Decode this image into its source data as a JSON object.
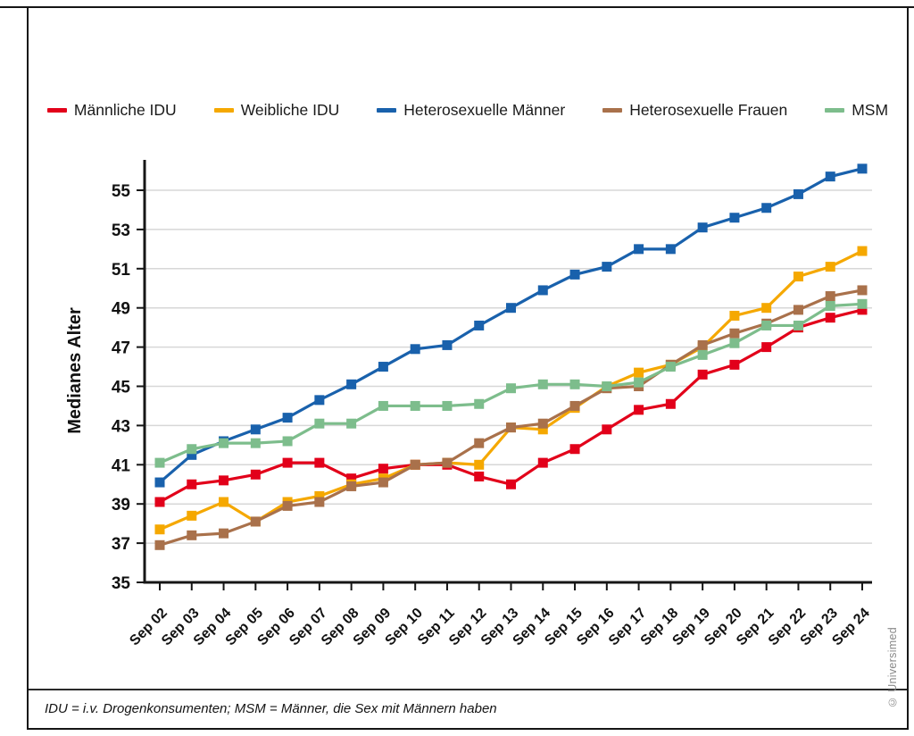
{
  "figure": {
    "footnote": "IDU = i.v. Drogenkonsumenten; MSM = Männer, die Sex mit Männern haben",
    "copyright": "© Universimed"
  },
  "chart_data": {
    "type": "line",
    "title": "",
    "ylabel": "Medianes Alter",
    "ylim": [
      35,
      57
    ],
    "yticks": [
      35,
      37,
      39,
      41,
      43,
      45,
      47,
      49,
      51,
      53,
      55
    ],
    "grid": true,
    "legend_position": "top",
    "marker": "square",
    "categories": [
      "Sep 02",
      "Sep 03",
      "Sep 04",
      "Sep 05",
      "Sep 06",
      "Sep 07",
      "Sep 08",
      "Sep 09",
      "Sep 10",
      "Sep 11",
      "Sep 12",
      "Sep 13",
      "Sep 14",
      "Sep 15",
      "Sep 16",
      "Sep 17",
      "Sep 18",
      "Sep 19",
      "Sep 20",
      "Sep 21",
      "Sep 22",
      "Sep 23",
      "Sep 24"
    ],
    "series": [
      {
        "name": "Männliche IDU",
        "color": "#e2001a",
        "values": [
          39.1,
          40.0,
          40.2,
          40.5,
          41.1,
          41.1,
          40.3,
          40.8,
          41.0,
          41.0,
          40.4,
          40.0,
          41.1,
          41.8,
          42.8,
          43.8,
          44.1,
          45.6,
          46.1,
          47.0,
          48.0,
          48.5,
          48.9
        ]
      },
      {
        "name": "Weibliche IDU",
        "color": "#f5a800",
        "values": [
          37.7,
          38.4,
          39.1,
          38.1,
          39.1,
          39.4,
          40.0,
          40.3,
          41.0,
          41.1,
          41.0,
          42.9,
          42.8,
          43.9,
          45.0,
          45.7,
          46.1,
          47.0,
          48.6,
          49.0,
          50.6,
          51.1,
          51.9
        ]
      },
      {
        "name": "Heterosexuelle Männer",
        "color": "#1961ac",
        "values": [
          40.1,
          41.5,
          42.2,
          42.8,
          43.4,
          44.3,
          45.1,
          46.0,
          46.9,
          47.1,
          48.1,
          49.0,
          49.9,
          50.7,
          51.1,
          52.0,
          52.0,
          53.1,
          53.6,
          54.1,
          54.8,
          55.7,
          56.1
        ]
      },
      {
        "name": "Heterosexuelle Frauen",
        "color": "#a9714b",
        "values": [
          36.9,
          37.4,
          37.5,
          38.1,
          38.9,
          39.1,
          39.9,
          40.1,
          41.0,
          41.1,
          42.1,
          42.9,
          43.1,
          44.0,
          44.9,
          45.0,
          46.1,
          47.1,
          47.7,
          48.2,
          48.9,
          49.6,
          49.9
        ]
      },
      {
        "name": "MSM",
        "color": "#7dbd8c",
        "values": [
          41.1,
          41.8,
          42.1,
          42.1,
          42.2,
          43.1,
          43.1,
          44.0,
          44.0,
          44.0,
          44.1,
          44.9,
          45.1,
          45.1,
          45.0,
          45.2,
          46.0,
          46.6,
          47.2,
          48.1,
          48.1,
          49.1,
          49.2
        ]
      }
    ]
  }
}
